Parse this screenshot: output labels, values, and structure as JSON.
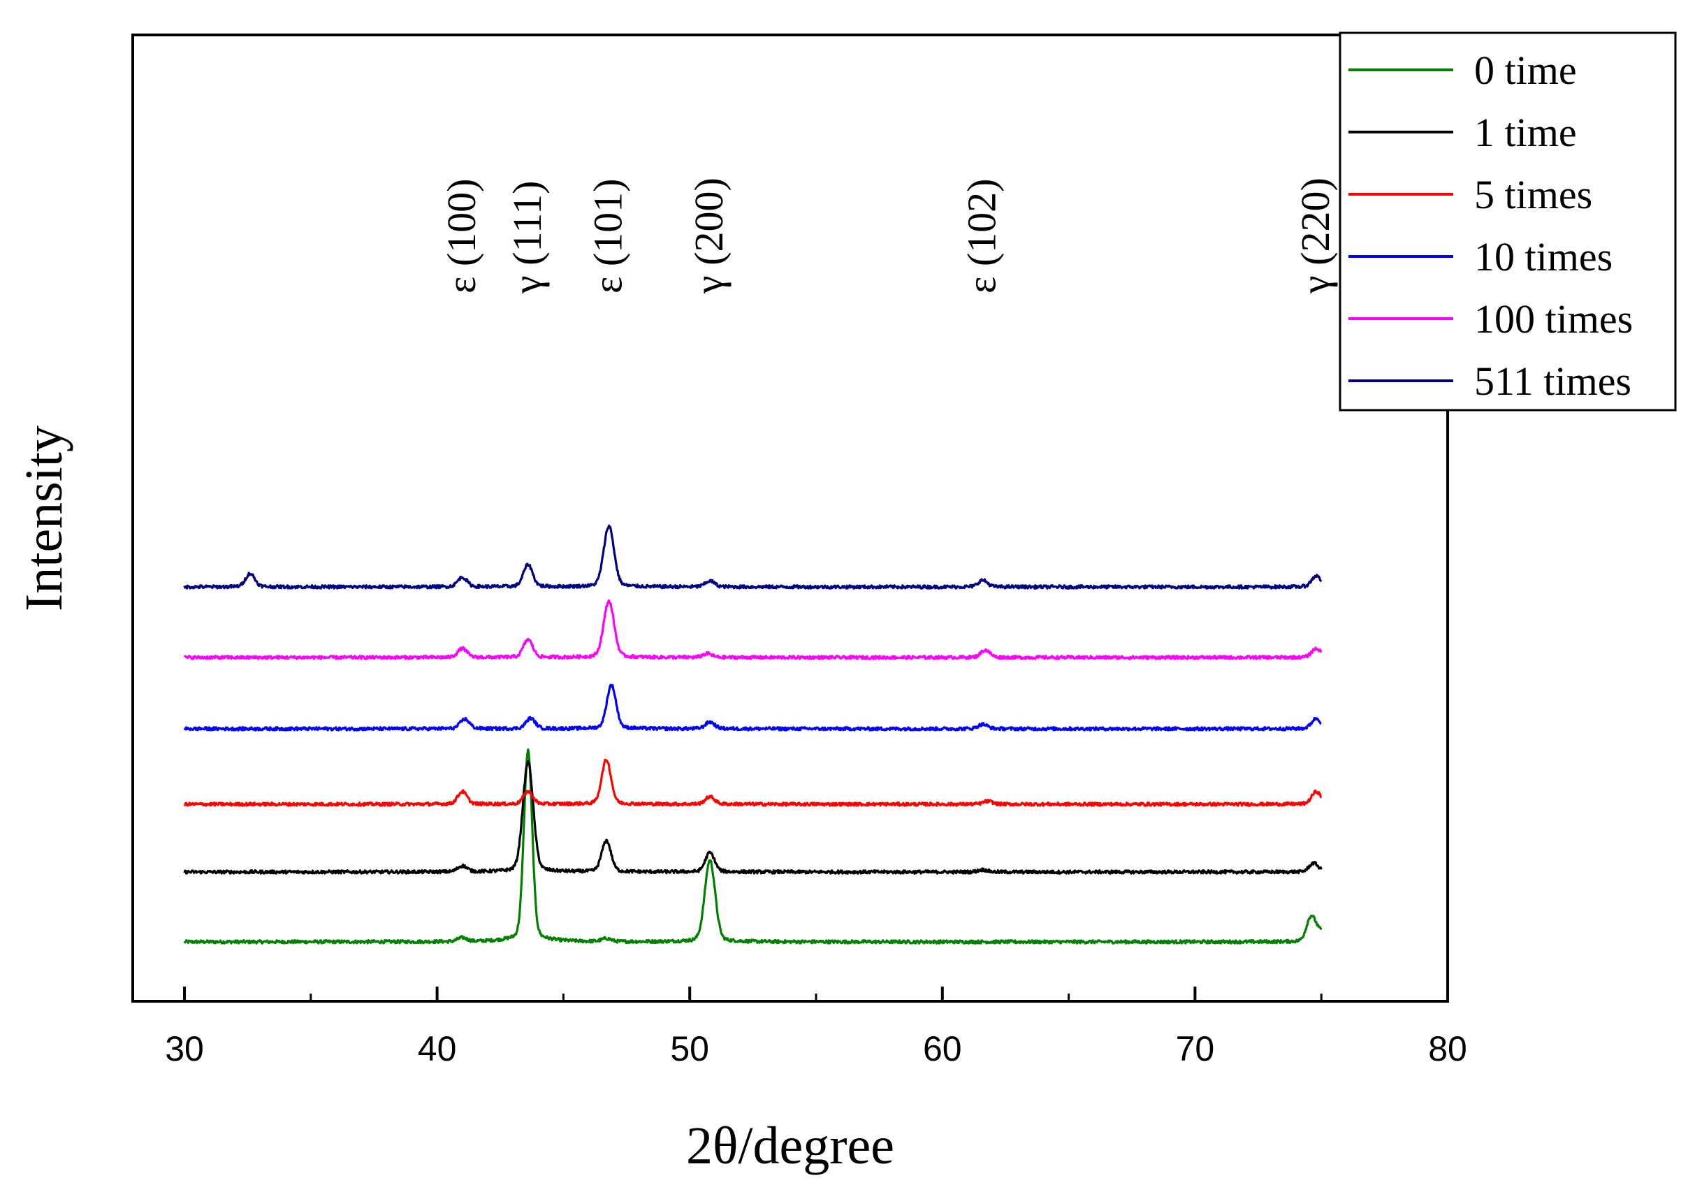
{
  "chart_data": {
    "type": "line",
    "title": "",
    "xlabel": "2θ/degree",
    "ylabel": "Intensity",
    "xlim": [
      28,
      80
    ],
    "xticks": [
      30,
      40,
      50,
      60,
      70,
      80
    ],
    "xtick_labels": [
      "30",
      "40",
      "50",
      "60",
      "70",
      "80"
    ],
    "x_range": [
      30,
      75
    ],
    "legend": {
      "placement": "top-right"
    },
    "series": [
      {
        "name": "0 time",
        "color": "#008000",
        "offset": 0,
        "peaks": [
          [
            41.0,
            5
          ],
          [
            43.6,
            258
          ],
          [
            46.7,
            4
          ],
          [
            50.8,
            110
          ],
          [
            74.6,
            34
          ],
          [
            75.0,
            12
          ]
        ]
      },
      {
        "name": "1 time",
        "color": "#000000",
        "offset": 100,
        "peaks": [
          [
            41.0,
            8
          ],
          [
            43.6,
            148
          ],
          [
            46.7,
            42
          ],
          [
            50.8,
            26
          ],
          [
            61.6,
            3
          ],
          [
            74.7,
            12
          ]
        ]
      },
      {
        "name": "5 times",
        "color": "#ff0000",
        "offset": 197,
        "peaks": [
          [
            41.0,
            17
          ],
          [
            43.6,
            17
          ],
          [
            46.7,
            60
          ],
          [
            50.8,
            10
          ],
          [
            61.8,
            4
          ],
          [
            74.8,
            17
          ]
        ]
      },
      {
        "name": "10 times",
        "color": "#0000ff",
        "offset": 305,
        "peaks": [
          [
            41.1,
            13
          ],
          [
            43.7,
            14
          ],
          [
            46.9,
            59
          ],
          [
            50.8,
            9
          ],
          [
            61.6,
            6
          ],
          [
            74.8,
            14
          ]
        ]
      },
      {
        "name": "100 times",
        "color": "#ff00ff",
        "offset": 407,
        "peaks": [
          [
            41.0,
            12
          ],
          [
            43.6,
            24
          ],
          [
            46.8,
            76
          ],
          [
            50.7,
            5
          ],
          [
            61.7,
            10
          ],
          [
            74.8,
            12
          ]
        ]
      },
      {
        "name": "511 times",
        "color": "#000080",
        "offset": 508,
        "peaks": [
          [
            32.6,
            18
          ],
          [
            41.0,
            13
          ],
          [
            43.6,
            30
          ],
          [
            46.8,
            82
          ],
          [
            50.8,
            8
          ],
          [
            61.6,
            9
          ],
          [
            74.8,
            15
          ]
        ]
      }
    ],
    "annotations": [
      {
        "text": "ε (100)",
        "x": 41.0
      },
      {
        "text": "γ (111)",
        "x": 43.6
      },
      {
        "text": "ε (101)",
        "x": 46.8
      },
      {
        "text": "γ (200)",
        "x": 50.8
      },
      {
        "text": "ε (102)",
        "x": 61.6
      },
      {
        "text": "γ (220)",
        "x": 74.8
      }
    ]
  }
}
